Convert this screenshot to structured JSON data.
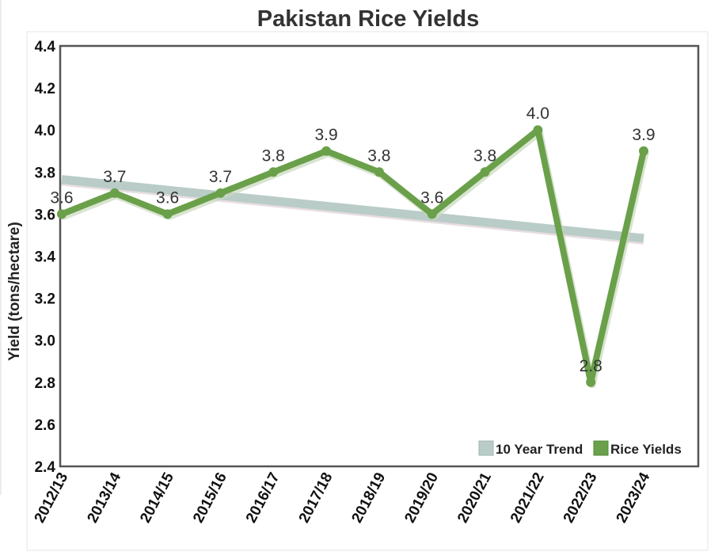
{
  "chart_data": {
    "type": "line",
    "title": "Pakistan Rice Yields",
    "xlabel": "",
    "ylabel": "Yield (tons/hectare)",
    "categories": [
      "2012/13",
      "2013/14",
      "2014/15",
      "2015/16",
      "2016/17",
      "2017/18",
      "2018/19",
      "2019/20",
      "2020/21",
      "2021/22",
      "2022/23",
      "2023/24"
    ],
    "ylim": [
      2.4,
      4.4
    ],
    "yticks": [
      "2.4",
      "2.6",
      "2.8",
      "3.0",
      "3.2",
      "3.4",
      "3.6",
      "3.8",
      "4.0",
      "4.2",
      "4.4"
    ],
    "grid": false,
    "legend_position": "bottom-right",
    "series": [
      {
        "name": "10 Year Trend",
        "color": "#b9ccc8",
        "start_category": "2012/13",
        "end_category": "2023/24",
        "values_at_ends": [
          3.765,
          3.485
        ]
      },
      {
        "name": "Rice Yields",
        "color": "#6aa04a",
        "values": [
          3.6,
          3.7,
          3.6,
          3.7,
          3.8,
          3.9,
          3.8,
          3.6,
          3.8,
          4.0,
          2.8,
          3.9
        ],
        "labels": [
          "3.6",
          "3.7",
          "3.6",
          "3.7",
          "3.8",
          "3.9",
          "3.8",
          "3.6",
          "3.8",
          "4.0",
          "2.8",
          "3.9"
        ]
      }
    ]
  }
}
